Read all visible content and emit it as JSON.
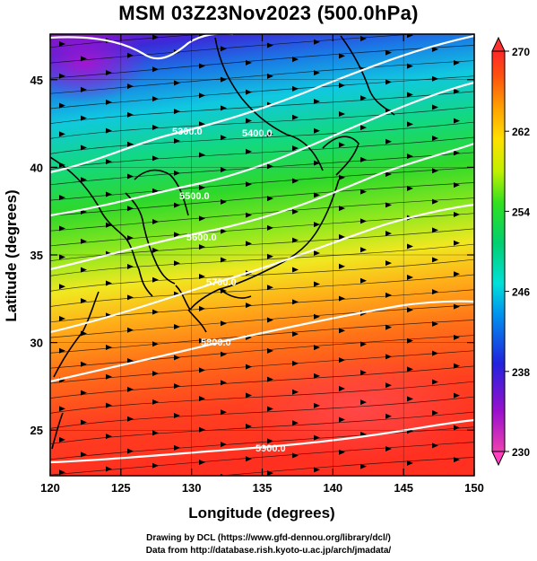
{
  "title": "MSM 03Z23Nov2023 (500.0hPa)",
  "x_axis": {
    "label": "Longitude (degrees)",
    "range": [
      120,
      150
    ],
    "ticks": [
      "120",
      "125",
      "130",
      "135",
      "140",
      "145",
      "150"
    ]
  },
  "y_axis": {
    "label": "Latitude  (degrees)",
    "range": [
      22.4,
      47.6
    ],
    "ticks": [
      "25",
      "30",
      "35",
      "40",
      "45"
    ]
  },
  "colorbar": {
    "min": 230,
    "max": 270,
    "labels": [
      "270",
      "262",
      "254",
      "246",
      "238",
      "230"
    ],
    "colors": [
      "#ee0090",
      "#9a10cc",
      "#2222dd",
      "#0090ee",
      "#00e0d8",
      "#00d070",
      "#30e020",
      "#c0f000",
      "#ffe000",
      "#ffa000",
      "#ff5010",
      "#ff2828"
    ]
  },
  "contours": [
    {
      "label": "5300.0"
    },
    {
      "label": "5400.0"
    },
    {
      "label": "5500.0"
    },
    {
      "label": "5600.0"
    },
    {
      "label": "5700.0"
    },
    {
      "label": "5800.0"
    },
    {
      "label": "5900.0"
    }
  ],
  "footer": {
    "line1": "Drawing by DCL (https://www.gfd-dennou.org/library/dcl/)",
    "line2": "Data from http://database.rish.kyoto-u.ac.jp/arch/jmadata/"
  }
}
